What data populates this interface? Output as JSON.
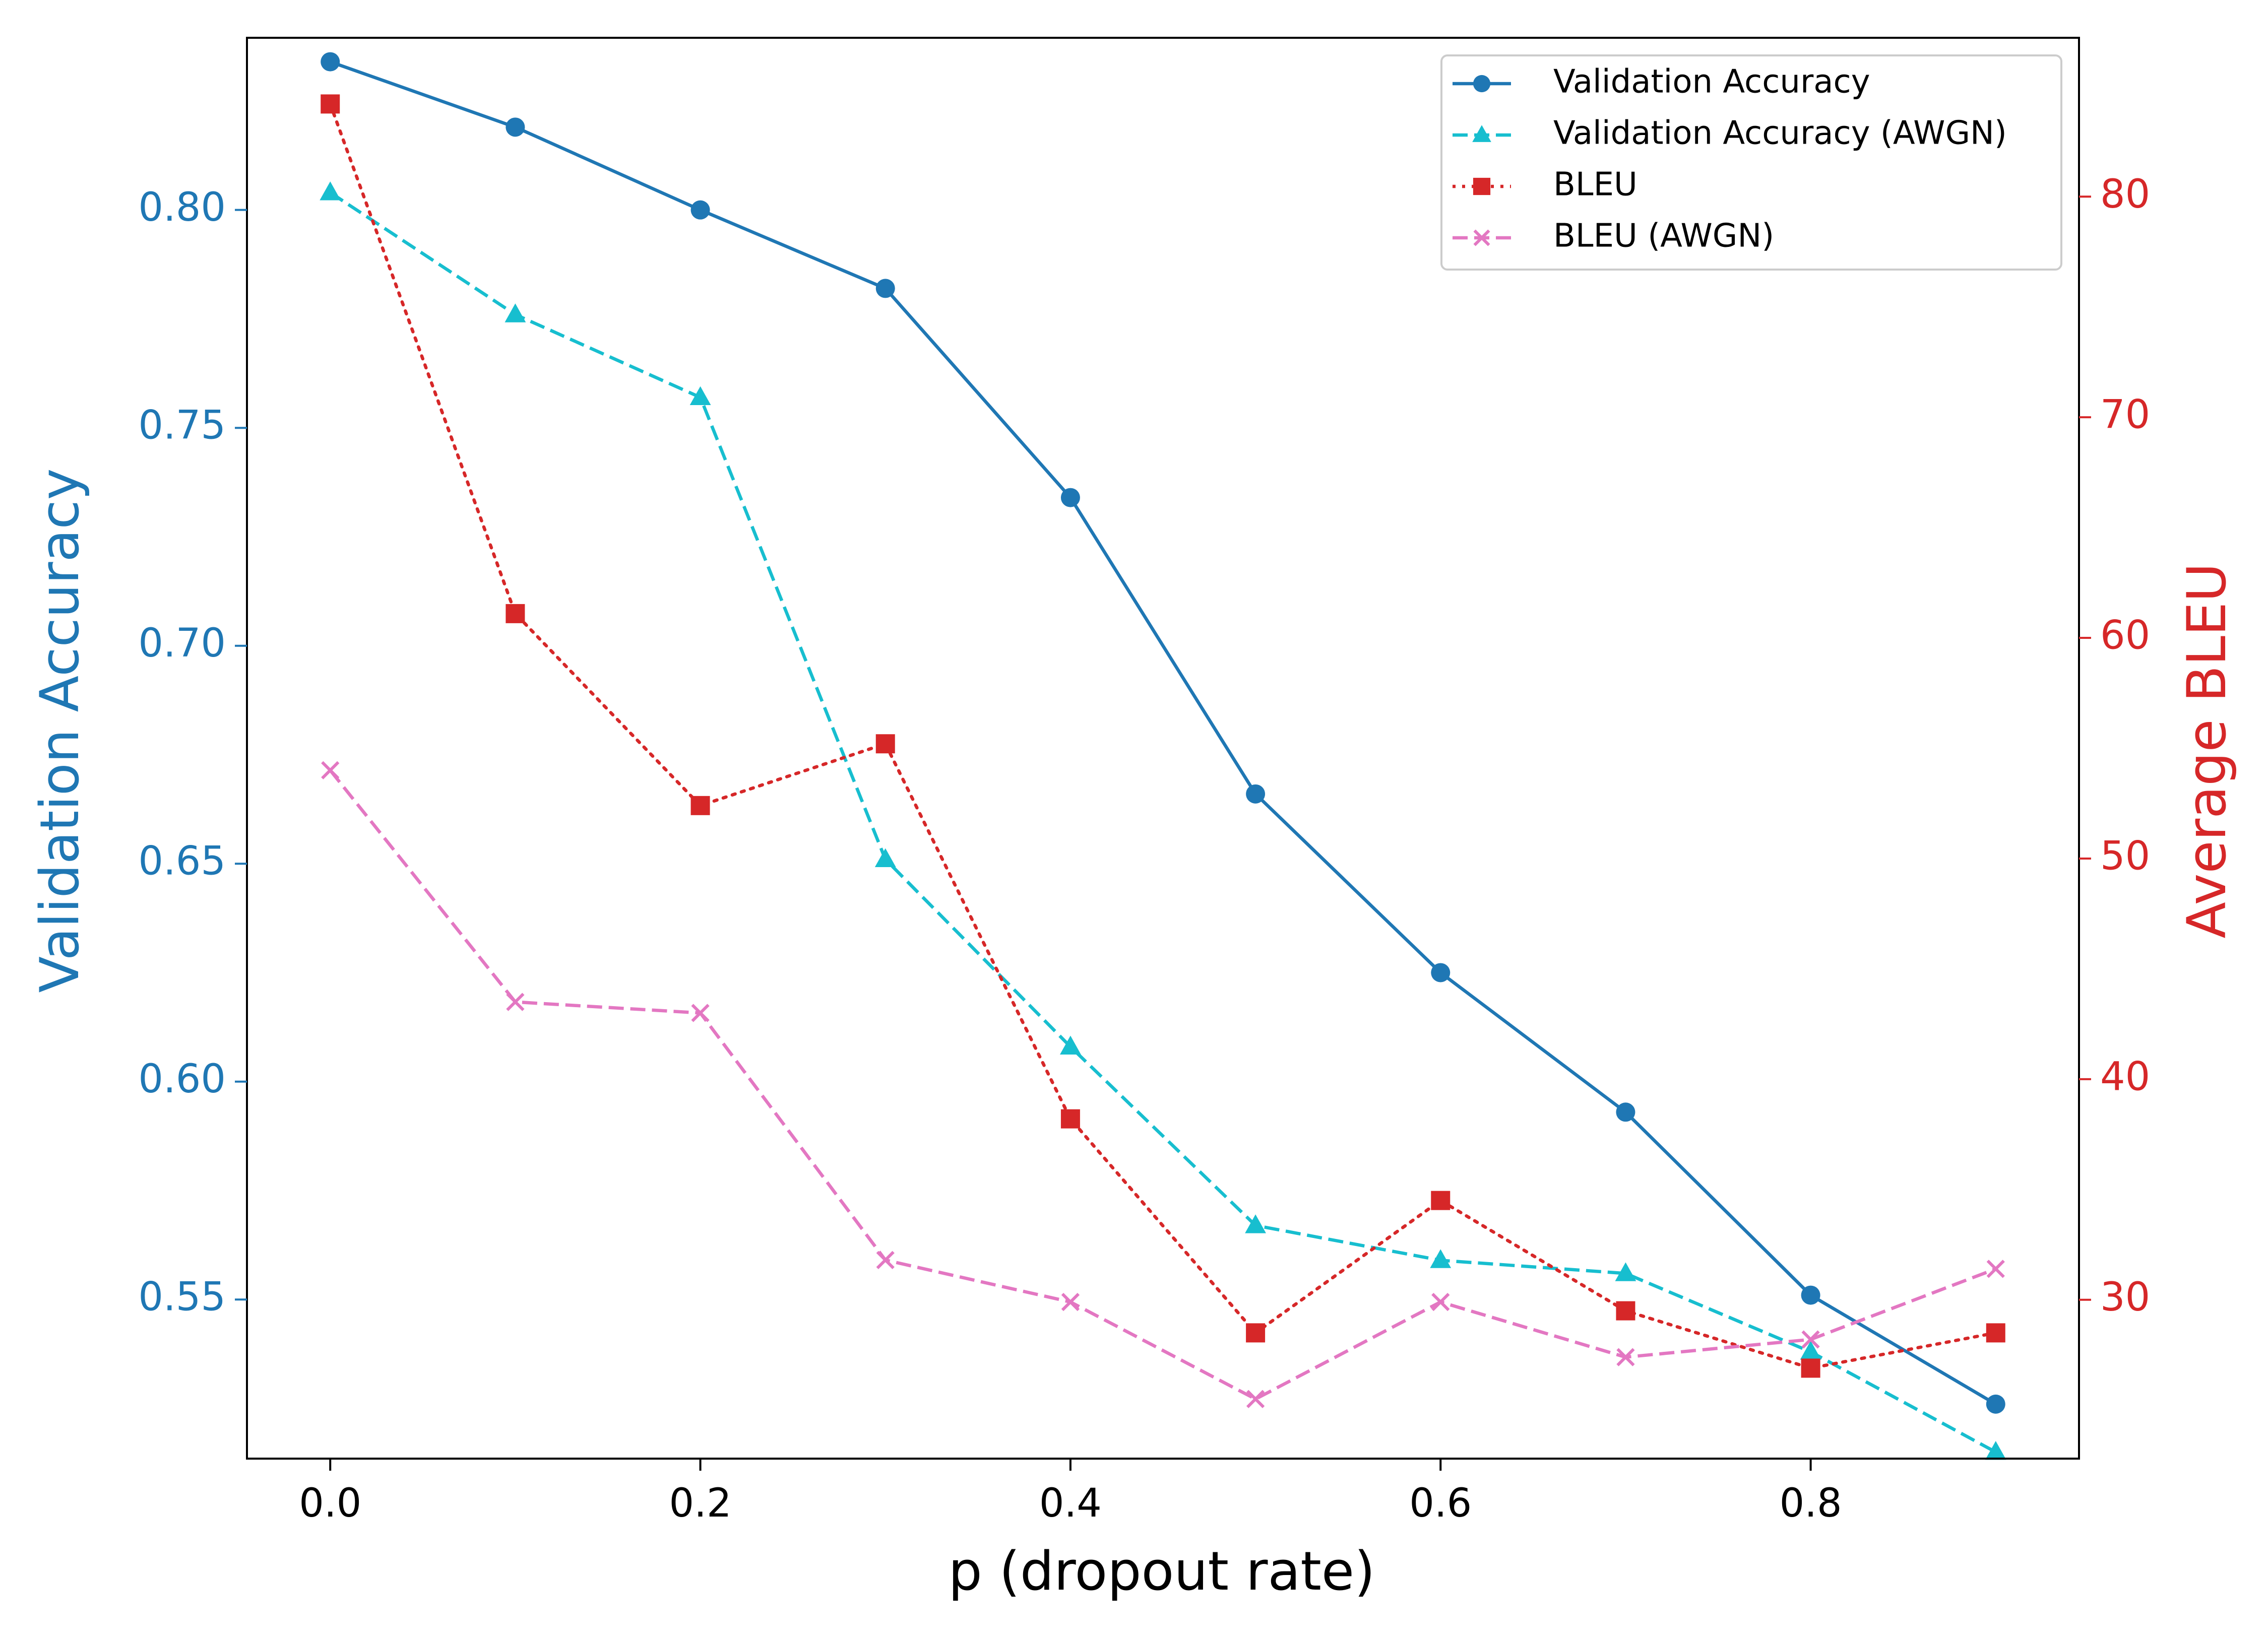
{
  "chart_data": {
    "type": "line",
    "xlabel": "p (dropout rate)",
    "ylabel_left": "Validation Accuracy",
    "ylabel_right": "Average BLEU",
    "x": [
      0.0,
      0.1,
      0.2,
      0.3,
      0.4,
      0.5,
      0.6,
      0.7,
      0.8,
      0.9
    ],
    "xlim": [
      -0.045,
      0.945
    ],
    "ylim_left": [
      0.5135,
      0.8395
    ],
    "ylim_right": [
      22.8,
      87.2
    ],
    "x_ticks": [
      0.0,
      0.2,
      0.4,
      0.6,
      0.8
    ],
    "x_tick_labels": [
      "0.0",
      "0.2",
      "0.4",
      "0.6",
      "0.8"
    ],
    "y_left_ticks": [
      0.55,
      0.6,
      0.65,
      0.7,
      0.75,
      0.8
    ],
    "y_left_tick_labels": [
      "0.55",
      "0.60",
      "0.65",
      "0.70",
      "0.75",
      "0.80"
    ],
    "y_right_ticks": [
      30,
      40,
      50,
      60,
      70,
      80
    ],
    "y_right_tick_labels": [
      "30",
      "40",
      "50",
      "60",
      "70",
      "80"
    ],
    "legend_position": "top-right",
    "colors": {
      "left_axis": "#1f77b4",
      "right_axis": "#d62728"
    },
    "series": [
      {
        "name": "Validation Accuracy",
        "axis": "left",
        "color": "#1f77b4",
        "linestyle": "solid",
        "marker": "circle",
        "values": [
          0.834,
          0.819,
          0.8,
          0.782,
          0.734,
          0.666,
          0.625,
          0.593,
          0.551,
          0.526
        ]
      },
      {
        "name": "Validation Accuracy (AWGN)",
        "axis": "left",
        "color": "#17becf",
        "linestyle": "dashed",
        "marker": "triangle",
        "values": [
          0.804,
          0.776,
          0.757,
          0.651,
          0.608,
          0.567,
          0.559,
          0.556,
          0.538,
          0.515
        ]
      },
      {
        "name": "BLEU",
        "axis": "right",
        "color": "#d62728",
        "linestyle": "dotted",
        "marker": "square",
        "values": [
          84.2,
          61.1,
          52.4,
          55.2,
          38.2,
          28.5,
          34.5,
          29.5,
          26.9,
          28.5
        ]
      },
      {
        "name": "BLEU (AWGN)",
        "axis": "right",
        "color": "#e377c2",
        "linestyle": "dashed",
        "marker": "x",
        "values": [
          54.0,
          43.5,
          43.0,
          31.8,
          29.9,
          25.5,
          29.9,
          27.4,
          28.2,
          31.4
        ]
      }
    ]
  }
}
